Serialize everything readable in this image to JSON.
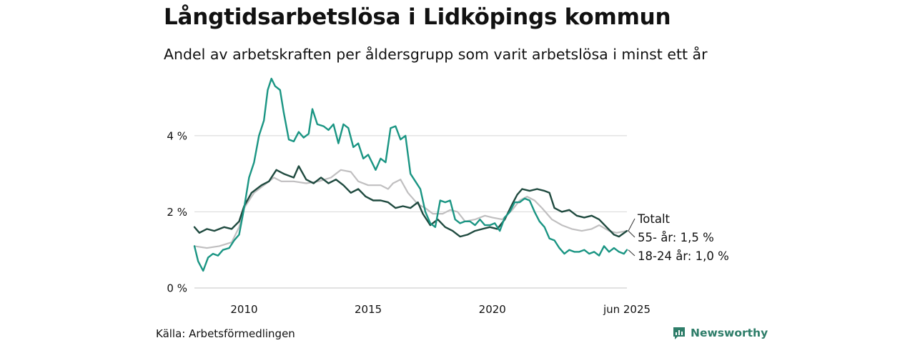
{
  "header": {
    "title": "Långtidsarbetslösa i Lidköpings kommun",
    "subtitle": "Andel av arbetskraften per åldersgrupp som varit arbetslösa i minst ett år"
  },
  "footer": {
    "source": "Källa: Arbetsförmedlingen",
    "brand": "Newsworthy"
  },
  "colors": {
    "youth": "#1a9583",
    "older": "#1f4a3f",
    "total": "#c0bfc0",
    "grid": "#dddddd",
    "brand": "#2e7d69"
  },
  "chart_data": {
    "type": "line",
    "x_tick_labels": [
      "2010",
      "2015",
      "2020",
      "jun 2025"
    ],
    "x_ticks": [
      2010,
      2015,
      2020,
      2025.42
    ],
    "xlim": [
      2008.0,
      2025.42
    ],
    "y_tick_labels": [
      "0 %",
      "2 %",
      "4 %"
    ],
    "y_ticks": [
      0,
      2,
      4
    ],
    "ylim": [
      0,
      5.8
    ],
    "grid": "horizontal",
    "series": [
      {
        "name": "Totalt",
        "key": "total",
        "label": "Totalt",
        "points": [
          [
            2008.0,
            1.1
          ],
          [
            2008.5,
            1.05
          ],
          [
            2009.0,
            1.1
          ],
          [
            2009.5,
            1.2
          ],
          [
            2009.8,
            1.6
          ],
          [
            2010.0,
            2.1
          ],
          [
            2010.4,
            2.5
          ],
          [
            2010.8,
            2.7
          ],
          [
            2011.2,
            2.9
          ],
          [
            2011.5,
            2.8
          ],
          [
            2012.0,
            2.8
          ],
          [
            2012.5,
            2.75
          ],
          [
            2013.0,
            2.8
          ],
          [
            2013.5,
            2.9
          ],
          [
            2013.9,
            3.1
          ],
          [
            2014.3,
            3.05
          ],
          [
            2014.6,
            2.8
          ],
          [
            2015.0,
            2.7
          ],
          [
            2015.5,
            2.7
          ],
          [
            2015.8,
            2.6
          ],
          [
            2016.0,
            2.75
          ],
          [
            2016.3,
            2.85
          ],
          [
            2016.6,
            2.5
          ],
          [
            2017.0,
            2.2
          ],
          [
            2017.3,
            2.1
          ],
          [
            2017.6,
            1.95
          ],
          [
            2018.0,
            1.95
          ],
          [
            2018.3,
            2.05
          ],
          [
            2018.6,
            2.0
          ],
          [
            2018.9,
            1.75
          ],
          [
            2019.3,
            1.8
          ],
          [
            2019.7,
            1.9
          ],
          [
            2020.0,
            1.85
          ],
          [
            2020.4,
            1.8
          ],
          [
            2020.8,
            2.05
          ],
          [
            2021.1,
            2.3
          ],
          [
            2021.4,
            2.4
          ],
          [
            2021.7,
            2.3
          ],
          [
            2022.0,
            2.1
          ],
          [
            2022.4,
            1.8
          ],
          [
            2022.8,
            1.65
          ],
          [
            2023.2,
            1.55
          ],
          [
            2023.6,
            1.5
          ],
          [
            2024.0,
            1.55
          ],
          [
            2024.3,
            1.65
          ],
          [
            2024.7,
            1.5
          ],
          [
            2025.0,
            1.45
          ],
          [
            2025.42,
            1.5
          ]
        ]
      },
      {
        "name": "55- år",
        "key": "older",
        "label": "55- år: 1,5 %",
        "points": [
          [
            2008.0,
            1.6
          ],
          [
            2008.2,
            1.45
          ],
          [
            2008.5,
            1.55
          ],
          [
            2008.8,
            1.5
          ],
          [
            2009.2,
            1.6
          ],
          [
            2009.5,
            1.55
          ],
          [
            2009.8,
            1.75
          ],
          [
            2010.0,
            2.15
          ],
          [
            2010.3,
            2.5
          ],
          [
            2010.7,
            2.7
          ],
          [
            2011.0,
            2.8
          ],
          [
            2011.3,
            3.1
          ],
          [
            2011.6,
            3.0
          ],
          [
            2012.0,
            2.9
          ],
          [
            2012.2,
            3.2
          ],
          [
            2012.5,
            2.85
          ],
          [
            2012.8,
            2.75
          ],
          [
            2013.1,
            2.9
          ],
          [
            2013.4,
            2.75
          ],
          [
            2013.7,
            2.85
          ],
          [
            2014.0,
            2.7
          ],
          [
            2014.3,
            2.5
          ],
          [
            2014.6,
            2.6
          ],
          [
            2014.9,
            2.4
          ],
          [
            2015.2,
            2.3
          ],
          [
            2015.5,
            2.3
          ],
          [
            2015.8,
            2.25
          ],
          [
            2016.1,
            2.1
          ],
          [
            2016.4,
            2.15
          ],
          [
            2016.7,
            2.1
          ],
          [
            2017.0,
            2.25
          ],
          [
            2017.2,
            1.95
          ],
          [
            2017.5,
            1.65
          ],
          [
            2017.8,
            1.8
          ],
          [
            2018.1,
            1.6
          ],
          [
            2018.4,
            1.5
          ],
          [
            2018.7,
            1.35
          ],
          [
            2019.0,
            1.4
          ],
          [
            2019.3,
            1.5
          ],
          [
            2019.6,
            1.55
          ],
          [
            2019.9,
            1.6
          ],
          [
            2020.2,
            1.55
          ],
          [
            2020.5,
            1.8
          ],
          [
            2020.8,
            2.2
          ],
          [
            2021.0,
            2.45
          ],
          [
            2021.2,
            2.6
          ],
          [
            2021.5,
            2.55
          ],
          [
            2021.8,
            2.6
          ],
          [
            2022.1,
            2.55
          ],
          [
            2022.3,
            2.5
          ],
          [
            2022.5,
            2.1
          ],
          [
            2022.8,
            2.0
          ],
          [
            2023.1,
            2.05
          ],
          [
            2023.4,
            1.9
          ],
          [
            2023.7,
            1.85
          ],
          [
            2024.0,
            1.9
          ],
          [
            2024.3,
            1.8
          ],
          [
            2024.6,
            1.6
          ],
          [
            2024.9,
            1.4
          ],
          [
            2025.1,
            1.35
          ],
          [
            2025.42,
            1.5
          ]
        ]
      },
      {
        "name": "18-24 år",
        "key": "youth",
        "label": "18-24 år: 1,0 %",
        "points": [
          [
            2008.0,
            1.1
          ],
          [
            2008.15,
            0.7
          ],
          [
            2008.35,
            0.45
          ],
          [
            2008.55,
            0.8
          ],
          [
            2008.75,
            0.9
          ],
          [
            2008.95,
            0.85
          ],
          [
            2009.15,
            1.0
          ],
          [
            2009.4,
            1.05
          ],
          [
            2009.6,
            1.25
          ],
          [
            2009.8,
            1.4
          ],
          [
            2010.0,
            2.1
          ],
          [
            2010.2,
            2.9
          ],
          [
            2010.4,
            3.3
          ],
          [
            2010.6,
            4.0
          ],
          [
            2010.8,
            4.4
          ],
          [
            2010.95,
            5.2
          ],
          [
            2011.1,
            5.5
          ],
          [
            2011.25,
            5.3
          ],
          [
            2011.45,
            5.2
          ],
          [
            2011.6,
            4.6
          ],
          [
            2011.8,
            3.9
          ],
          [
            2012.0,
            3.85
          ],
          [
            2012.2,
            4.1
          ],
          [
            2012.4,
            3.95
          ],
          [
            2012.6,
            4.05
          ],
          [
            2012.75,
            4.7
          ],
          [
            2012.95,
            4.3
          ],
          [
            2013.2,
            4.25
          ],
          [
            2013.4,
            4.15
          ],
          [
            2013.6,
            4.3
          ],
          [
            2013.8,
            3.8
          ],
          [
            2014.0,
            4.3
          ],
          [
            2014.2,
            4.2
          ],
          [
            2014.4,
            3.7
          ],
          [
            2014.6,
            3.8
          ],
          [
            2014.8,
            3.4
          ],
          [
            2015.0,
            3.5
          ],
          [
            2015.3,
            3.1
          ],
          [
            2015.5,
            3.4
          ],
          [
            2015.7,
            3.3
          ],
          [
            2015.9,
            4.2
          ],
          [
            2016.1,
            4.25
          ],
          [
            2016.3,
            3.9
          ],
          [
            2016.5,
            4.0
          ],
          [
            2016.7,
            3.0
          ],
          [
            2016.9,
            2.8
          ],
          [
            2017.1,
            2.6
          ],
          [
            2017.3,
            2.0
          ],
          [
            2017.5,
            1.7
          ],
          [
            2017.7,
            1.6
          ],
          [
            2017.9,
            2.3
          ],
          [
            2018.1,
            2.25
          ],
          [
            2018.3,
            2.3
          ],
          [
            2018.5,
            1.8
          ],
          [
            2018.7,
            1.7
          ],
          [
            2018.9,
            1.75
          ],
          [
            2019.1,
            1.75
          ],
          [
            2019.3,
            1.65
          ],
          [
            2019.5,
            1.8
          ],
          [
            2019.7,
            1.65
          ],
          [
            2019.9,
            1.65
          ],
          [
            2020.1,
            1.7
          ],
          [
            2020.3,
            1.5
          ],
          [
            2020.5,
            1.85
          ],
          [
            2020.7,
            2.0
          ],
          [
            2020.9,
            2.25
          ],
          [
            2021.1,
            2.25
          ],
          [
            2021.3,
            2.35
          ],
          [
            2021.5,
            2.3
          ],
          [
            2021.7,
            2.0
          ],
          [
            2021.9,
            1.75
          ],
          [
            2022.1,
            1.6
          ],
          [
            2022.3,
            1.3
          ],
          [
            2022.5,
            1.25
          ],
          [
            2022.7,
            1.05
          ],
          [
            2022.9,
            0.9
          ],
          [
            2023.1,
            1.0
          ],
          [
            2023.3,
            0.95
          ],
          [
            2023.5,
            0.95
          ],
          [
            2023.7,
            1.0
          ],
          [
            2023.9,
            0.9
          ],
          [
            2024.1,
            0.95
          ],
          [
            2024.3,
            0.85
          ],
          [
            2024.5,
            1.1
          ],
          [
            2024.7,
            0.95
          ],
          [
            2024.9,
            1.05
          ],
          [
            2025.1,
            0.95
          ],
          [
            2025.3,
            0.9
          ],
          [
            2025.42,
            1.0
          ]
        ]
      }
    ]
  }
}
